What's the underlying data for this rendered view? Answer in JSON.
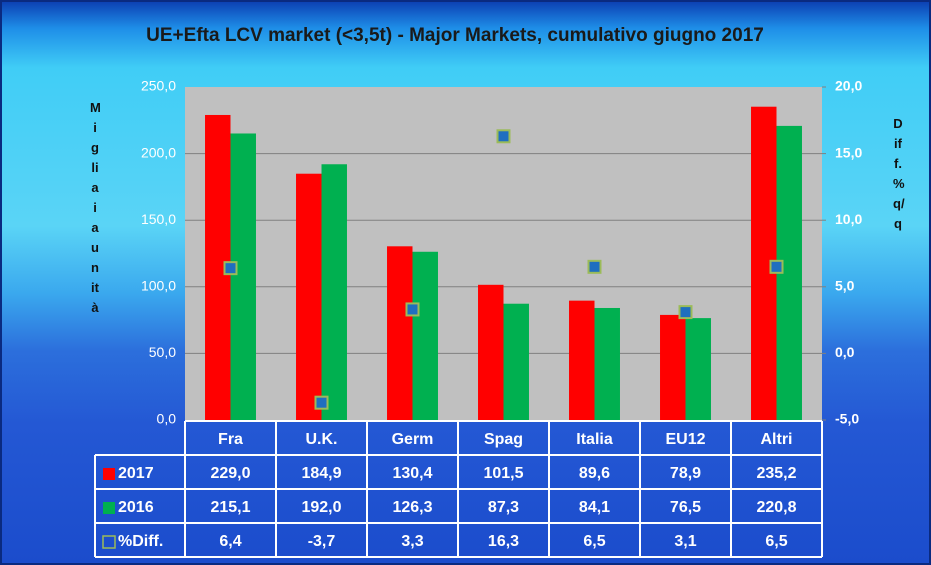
{
  "chart_data": {
    "type": "bar",
    "title": "UE+Efta LCV market (<3,5t) - Major Markets, cumulativo giugno 2017",
    "ylabel": "Migliaia unità",
    "y2label": "Diff. % q/q",
    "categories": [
      "Fra",
      "U.K.",
      "Germ",
      "Spag",
      "Italia",
      "EU12",
      "Altri"
    ],
    "series": [
      {
        "name": "2017",
        "color": "#ff0000",
        "values": [
          229.0,
          184.9,
          130.4,
          101.5,
          89.6,
          78.9,
          235.2
        ],
        "value_labels": [
          "229,0",
          "184,9",
          "130,4",
          "101,5",
          "89,6",
          "78,9",
          "235,2"
        ]
      },
      {
        "name": "2016",
        "color": "#00b050",
        "values": [
          215.1,
          192.0,
          126.3,
          87.3,
          84.1,
          76.5,
          220.8
        ],
        "value_labels": [
          "215,1",
          "192,0",
          "126,3",
          "87,3",
          "84,1",
          "76,5",
          "220,8"
        ]
      },
      {
        "name": "%Diff.",
        "color": "#1f6fbf",
        "axis": "y2",
        "values": [
          6.4,
          -3.7,
          3.3,
          16.3,
          6.5,
          3.1,
          6.5
        ],
        "value_labels": [
          "6,4",
          "-3,7",
          "3,3",
          "16,3",
          "6,5",
          "3,1",
          "6,5"
        ]
      }
    ],
    "ylim": [
      0,
      250
    ],
    "yticks": [
      {
        "value": 0,
        "label": "0,0"
      },
      {
        "value": 50,
        "label": "50,0"
      },
      {
        "value": 100,
        "label": "100,0"
      },
      {
        "value": 150,
        "label": "150,0"
      },
      {
        "value": 200,
        "label": "200,0"
      },
      {
        "value": 250,
        "label": "250,0"
      }
    ],
    "y2lim": [
      -5,
      20
    ],
    "y2ticks": [
      {
        "value": -5,
        "label": "-5,0"
      },
      {
        "value": 0,
        "label": "0,0"
      },
      {
        "value": 5,
        "label": "5,0"
      },
      {
        "value": 10,
        "label": "10,0"
      },
      {
        "value": 15,
        "label": "15,0"
      },
      {
        "value": 20,
        "label": "20,0"
      }
    ],
    "grid": true
  }
}
